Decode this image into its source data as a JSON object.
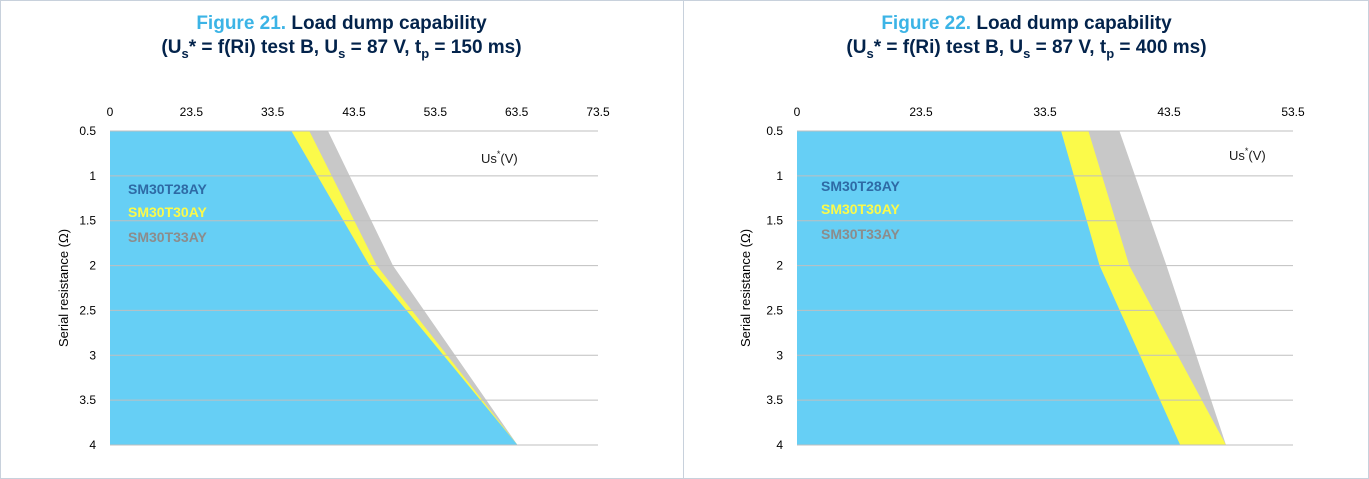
{
  "charts": [
    {
      "figure_number": "Figure 21.",
      "title_main": "Load dump capability",
      "subtitle": {
        "open": "(U",
        "s1": "s",
        "star": "* = f(Ri) test B, U",
        "s2": "s",
        "mid": " = 87 V, t",
        "p": "p",
        "end": " = 150 ms)"
      },
      "ylabel": "Serial resistance (Ω)",
      "unit_label": {
        "base": "Us",
        "sup": "*",
        "tail": "(V)"
      },
      "legend": [
        "SM30T28AY",
        "SM30T30AY",
        "SM30T33AY"
      ]
    },
    {
      "figure_number": "Figure 22.",
      "title_main": "Load dump capability",
      "subtitle": {
        "open": "(U",
        "s1": "s",
        "star": "* = f(Ri) test B, U",
        "s2": "s",
        "mid": " = 87 V, t",
        "p": "p",
        "end": " = 400 ms)"
      },
      "ylabel": "Serial resistance (Ω)",
      "unit_label": {
        "base": "Us",
        "sup": "*",
        "tail": "(V)"
      },
      "legend": [
        "SM30T28AY",
        "SM30T30AY",
        "SM30T33AY"
      ]
    }
  ],
  "colors": {
    "SM30T28AY": "#66cff5",
    "SM30T30AY": "#fbfa4a",
    "SM30T33AY": "#c8c8c8",
    "legend_SM30T28AY": "#2e6aa5",
    "legend_SM30T30AY": "#fbfa4a",
    "legend_SM30T33AY": "#8c8c8c",
    "title_number": "#3cb4e6",
    "title_text": "#03234b",
    "grid": "#bfbfbf"
  },
  "chart_data": [
    {
      "type": "area",
      "title": "Figure 21. Load dump capability",
      "ylabel": "Serial resistance (Ω)",
      "xlabel": "Us*(V)",
      "x_ticks": [
        "0",
        "23.5",
        "33.5",
        "43.5",
        "53.5",
        "63.5",
        "73.5"
      ],
      "x_tick_values": [
        0,
        23.5,
        33.5,
        43.5,
        53.5,
        63.5,
        73.5
      ],
      "y_ticks": [
        "0.5",
        "1",
        "1.5",
        "2",
        "2.5",
        "3",
        "3.5",
        "4"
      ],
      "y_tick_values": [
        0.5,
        1,
        1.5,
        2,
        2.5,
        3,
        3.5,
        4
      ],
      "y_inverted": true,
      "x_axis_position": "top",
      "grid": true,
      "series": [
        {
          "name": "SM30T33AY",
          "y": [
            0.5,
            2,
            4
          ],
          "x": [
            40.3,
            48.3,
            63.6
          ]
        },
        {
          "name": "SM30T30AY",
          "y": [
            0.5,
            2,
            4
          ],
          "x": [
            38.0,
            46.3,
            63.6
          ]
        },
        {
          "name": "SM30T28AY",
          "y": [
            0.5,
            2,
            4
          ],
          "x": [
            35.8,
            45.4,
            63.6
          ]
        }
      ]
    },
    {
      "type": "area",
      "title": "Figure 22. Load dump capability",
      "ylabel": "Serial resistance (Ω)",
      "xlabel": "Us*(V)",
      "x_ticks": [
        "0",
        "23.5",
        "33.5",
        "43.5",
        "53.5"
      ],
      "x_tick_values": [
        0,
        23.5,
        33.5,
        43.5,
        53.5
      ],
      "y_ticks": [
        "0.5",
        "1",
        "1.5",
        "2",
        "2.5",
        "3",
        "3.5",
        "4"
      ],
      "y_tick_values": [
        0.5,
        1,
        1.5,
        2,
        2.5,
        3,
        3.5,
        4
      ],
      "y_inverted": true,
      "x_axis_position": "top",
      "grid": true,
      "series": [
        {
          "name": "SM30T33AY",
          "y": [
            0.5,
            2,
            4
          ],
          "x": [
            39.5,
            43.3,
            48.1
          ]
        },
        {
          "name": "SM30T30AY",
          "y": [
            0.5,
            2,
            4
          ],
          "x": [
            37.0,
            40.3,
            48.1
          ]
        },
        {
          "name": "SM30T28AY",
          "y": [
            0.5,
            2,
            4
          ],
          "x": [
            34.8,
            37.9,
            44.4
          ]
        }
      ]
    }
  ]
}
